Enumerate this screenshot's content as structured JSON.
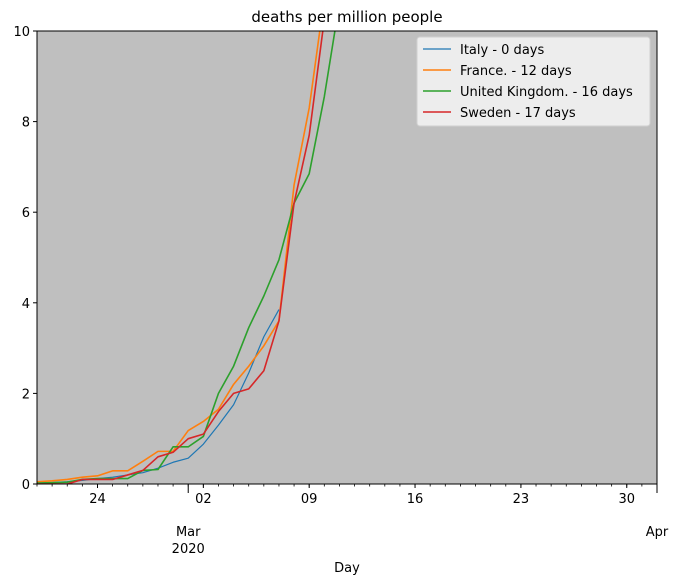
{
  "chart_data": {
    "type": "line",
    "title": "deaths per million people",
    "xlabel": "Day",
    "ylabel": "",
    "x_domain": [
      "2020-02-20",
      "2020-04-01"
    ],
    "ylim": [
      0,
      10
    ],
    "yticks": [
      0,
      2,
      4,
      6,
      8,
      10
    ],
    "x_major_ticks": [
      {
        "date": "2020-02-24",
        "label": "24"
      },
      {
        "date": "2020-03-01",
        "label": "Mar\n2020"
      },
      {
        "date": "2020-03-02",
        "label": "02"
      },
      {
        "date": "2020-03-09",
        "label": "09"
      },
      {
        "date": "2020-03-16",
        "label": "16"
      },
      {
        "date": "2020-03-23",
        "label": "23"
      },
      {
        "date": "2020-03-30",
        "label": "30"
      },
      {
        "date": "2020-04-01",
        "label": "Apr"
      }
    ],
    "background": "#bfbfbf",
    "legend_position": "top-right",
    "series": [
      {
        "name": "Italy - 0 days",
        "color": "#1f77b4",
        "x": [
          "2020-02-20",
          "2020-02-21",
          "2020-02-22",
          "2020-02-23",
          "2020-02-24",
          "2020-02-25",
          "2020-02-26",
          "2020-02-27",
          "2020-02-28",
          "2020-02-29",
          "2020-03-01",
          "2020-03-02",
          "2020-03-03",
          "2020-03-04",
          "2020-03-05",
          "2020-03-06",
          "2020-03-07"
        ],
        "y": [
          0.02,
          0.03,
          0.05,
          0.08,
          0.12,
          0.15,
          0.2,
          0.25,
          0.35,
          0.48,
          0.57,
          0.88,
          1.3,
          1.75,
          2.45,
          3.25,
          3.85
        ]
      },
      {
        "name": "France. - 12 days",
        "color": "#ff7f0e",
        "x": [
          "2020-02-20",
          "2020-02-21",
          "2020-02-22",
          "2020-02-23",
          "2020-02-24",
          "2020-02-25",
          "2020-02-26",
          "2020-02-27",
          "2020-02-28",
          "2020-02-29",
          "2020-03-01",
          "2020-03-02",
          "2020-03-03",
          "2020-03-04",
          "2020-03-05",
          "2020-03-06",
          "2020-03-07",
          "2020-03-08",
          "2020-03-09",
          "2020-03-09.7"
        ],
        "y": [
          0.05,
          0.07,
          0.1,
          0.15,
          0.18,
          0.29,
          0.29,
          0.5,
          0.72,
          0.72,
          1.18,
          1.38,
          1.65,
          2.2,
          2.6,
          3.05,
          3.6,
          6.6,
          8.3,
          10
        ]
      },
      {
        "name": "United Kingdom. - 16 days",
        "color": "#2ca02c",
        "x": [
          "2020-02-20",
          "2020-02-21",
          "2020-02-22",
          "2020-02-23",
          "2020-02-24",
          "2020-02-25",
          "2020-02-26",
          "2020-02-27",
          "2020-02-28",
          "2020-02-29",
          "2020-03-01",
          "2020-03-02",
          "2020-03-03",
          "2020-03-04",
          "2020-03-05",
          "2020-03-06",
          "2020-03-07",
          "2020-03-08",
          "2020-03-09",
          "2020-03-10",
          "2020-03-10.7"
        ],
        "y": [
          0.02,
          0.03,
          0.04,
          0.1,
          0.12,
          0.12,
          0.12,
          0.3,
          0.32,
          0.82,
          0.82,
          1.05,
          2.0,
          2.6,
          3.45,
          4.15,
          4.95,
          6.2,
          6.85,
          8.55,
          10
        ]
      },
      {
        "name": "Sweden - 17 days",
        "color": "#d62728",
        "x": [
          "2020-02-20",
          "2020-02-21",
          "2020-02-22",
          "2020-02-23",
          "2020-02-24",
          "2020-02-25",
          "2020-02-26",
          "2020-02-27",
          "2020-02-28",
          "2020-02-29",
          "2020-03-01",
          "2020-03-02",
          "2020-03-03",
          "2020-03-04",
          "2020-03-05",
          "2020-03-06",
          "2020-03-07",
          "2020-03-08",
          "2020-03-09",
          "2020-03-09.9"
        ],
        "y": [
          0.0,
          0.0,
          0.0,
          0.1,
          0.1,
          0.1,
          0.2,
          0.3,
          0.6,
          0.7,
          1.0,
          1.1,
          1.6,
          2.0,
          2.1,
          2.5,
          3.6,
          6.2,
          7.7,
          10
        ]
      }
    ]
  }
}
